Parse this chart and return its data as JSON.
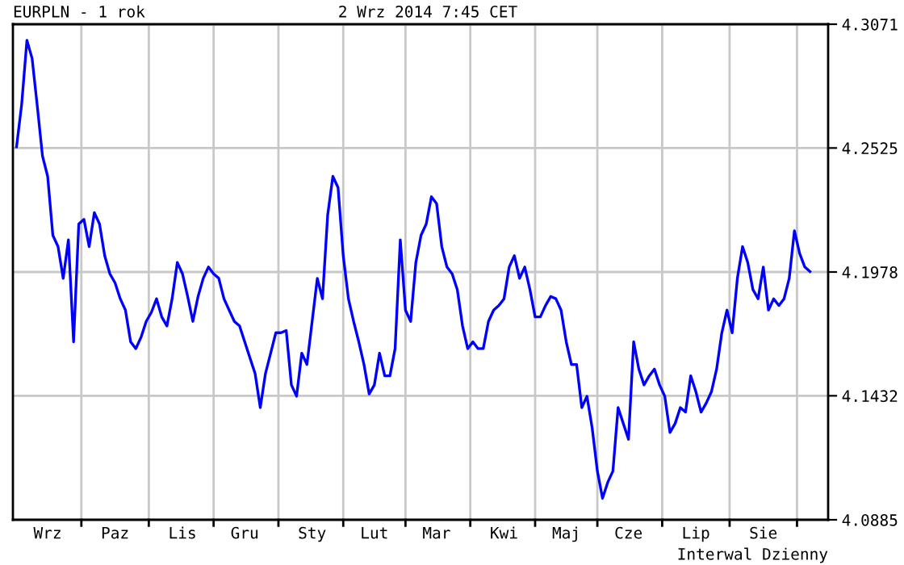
{
  "chart_data": {
    "type": "line",
    "title": "EURPLN - 1 rok",
    "subtitle": "2 Wrz 2014 7:45 CET",
    "annotations": [
      "Interwal Dzienny"
    ],
    "categories": [
      null,
      null,
      null,
      null,
      null,
      null,
      "Wrz",
      null,
      null,
      null,
      null,
      null,
      null,
      null,
      null,
      null,
      null,
      null,
      null,
      "Paz",
      null,
      null,
      null,
      null,
      null,
      null,
      null,
      null,
      null,
      null,
      null,
      null,
      "Lis",
      null,
      null,
      null,
      null,
      null,
      null,
      null,
      null,
      null,
      null,
      null,
      "Gru",
      null,
      null,
      null,
      null,
      null,
      null,
      null,
      null,
      null,
      null,
      null,
      null,
      "Sty",
      null,
      null,
      null,
      null,
      null,
      null,
      null,
      null,
      null,
      null,
      null,
      "Lut",
      null,
      null,
      null,
      null,
      null,
      null,
      null,
      null,
      null,
      null,
      null,
      "Mar",
      null,
      null,
      null,
      null,
      null,
      null,
      null,
      null,
      null,
      null,
      null,
      null,
      "Kwi",
      null,
      null,
      null,
      null,
      null,
      null,
      null,
      null,
      null,
      null,
      null,
      "Maj",
      null,
      null,
      null,
      null,
      null,
      null,
      null,
      null,
      null,
      null,
      null,
      "Cze",
      null,
      null,
      null,
      null,
      null,
      null,
      null,
      null,
      null,
      null,
      null,
      null,
      "Lip",
      null,
      null,
      null,
      null,
      null,
      null,
      null,
      null,
      null,
      null,
      null,
      null,
      "Sie",
      null,
      null,
      null,
      null,
      null,
      null,
      null,
      null,
      null
    ],
    "series": [
      {
        "color": "#0000ff",
        "values": [
          4.253,
          4.272,
          4.3,
          4.292,
          4.271,
          4.249,
          4.24,
          4.214,
          4.209,
          4.195,
          4.212,
          4.167,
          4.219,
          4.221,
          4.209,
          4.224,
          4.219,
          4.205,
          4.197,
          4.193,
          4.186,
          4.181,
          4.167,
          4.164,
          4.169,
          4.176,
          4.18,
          4.186,
          4.178,
          4.174,
          4.186,
          4.202,
          4.197,
          4.187,
          4.176,
          4.187,
          4.195,
          4.2,
          4.197,
          4.195,
          4.186,
          4.181,
          4.176,
          4.174,
          4.167,
          4.16,
          4.153,
          4.138,
          4.153,
          4.162,
          4.171,
          4.171,
          4.172,
          4.148,
          4.143,
          4.162,
          4.157,
          4.176,
          4.195,
          4.186,
          4.223,
          4.24,
          4.235,
          4.205,
          4.186,
          4.176,
          4.167,
          4.157,
          4.144,
          4.148,
          4.162,
          4.152,
          4.152,
          4.164,
          4.212,
          4.181,
          4.176,
          4.202,
          4.214,
          4.219,
          4.231,
          4.228,
          4.209,
          4.2,
          4.197,
          4.19,
          4.174,
          4.164,
          4.167,
          4.164,
          4.164,
          4.176,
          4.181,
          4.183,
          4.186,
          4.2,
          4.205,
          4.195,
          4.2,
          4.19,
          4.178,
          4.178,
          4.183,
          4.187,
          4.186,
          4.181,
          4.167,
          4.157,
          4.157,
          4.138,
          4.143,
          4.129,
          4.11,
          4.098,
          4.105,
          4.11,
          4.138,
          4.131,
          4.124,
          4.167,
          4.155,
          4.148,
          4.152,
          4.155,
          4.148,
          4.143,
          4.127,
          4.131,
          4.138,
          4.136,
          4.152,
          4.145,
          4.136,
          4.14,
          4.145,
          4.155,
          4.171,
          4.181,
          4.171,
          4.195,
          4.209,
          4.202,
          4.19,
          4.186,
          4.2,
          4.181,
          4.186,
          4.183,
          4.186,
          4.195,
          4.216,
          4.206,
          4.2,
          4.198
        ]
      }
    ],
    "ylim": [
      4.0885,
      4.3071
    ],
    "yticks": [
      4.0885,
      4.1432,
      4.1978,
      4.2525,
      4.3071
    ],
    "grid": true,
    "line_style": "solid",
    "marker": "none"
  }
}
